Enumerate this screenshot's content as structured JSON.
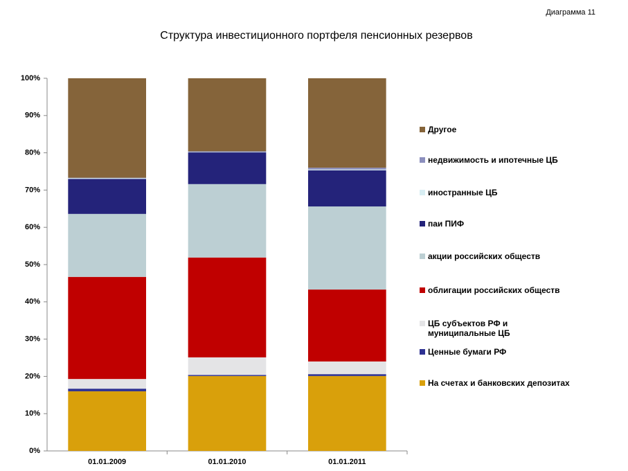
{
  "chart_data": {
    "type": "stacked-bar",
    "annotation": "Диаграмма 11",
    "title": "Структура инвестиционного портфеля пенсионных резервов",
    "categories": [
      "01.01.2009",
      "01.01.2010",
      "01.01.2011"
    ],
    "series": [
      {
        "name": "На счетах и банковских депозитах",
        "color": "#d9a00b",
        "values": [
          16.0,
          20.1,
          20.1
        ]
      },
      {
        "name": "Ценные бумаги РФ",
        "color": "#2e3192",
        "values": [
          0.7,
          0.3,
          0.5
        ]
      },
      {
        "name": "ЦБ субъектов РФ и муниципальные ЦБ",
        "color": "#e4e4e6",
        "values": [
          2.6,
          4.7,
          3.4
        ]
      },
      {
        "name": "облигации российских обществ",
        "color": "#c00000",
        "values": [
          27.4,
          26.8,
          19.3
        ]
      },
      {
        "name": "акции российских обществ",
        "color": "#bccfd3",
        "values": [
          16.9,
          19.7,
          22.3
        ]
      },
      {
        "name": "паи ПИФ",
        "color": "#24237a",
        "values": [
          9.4,
          8.5,
          9.7
        ]
      },
      {
        "name": "иностранные ЦБ",
        "color": "#d8eef3",
        "values": [
          0.2,
          0.1,
          0.2
        ]
      },
      {
        "name": "недвижимость и ипотечные ЦБ",
        "color": "#8c8fbd",
        "values": [
          0.1,
          0.2,
          0.5
        ]
      },
      {
        "name": "Другое",
        "color": "#85643a",
        "values": [
          26.7,
          19.6,
          24.0
        ]
      }
    ],
    "ylim": [
      0,
      100
    ],
    "yticks": [
      {
        "value": 0,
        "label": "0%"
      },
      {
        "value": 10,
        "label": "10%"
      },
      {
        "value": 20,
        "label": "20%"
      },
      {
        "value": 30,
        "label": "30%"
      },
      {
        "value": 40,
        "label": "40%"
      },
      {
        "value": 50,
        "label": "50%"
      },
      {
        "value": 60,
        "label": "60%"
      },
      {
        "value": 70,
        "label": "70%"
      },
      {
        "value": 80,
        "label": "80%"
      },
      {
        "value": 90,
        "label": "90%"
      },
      {
        "value": 100,
        "label": "100%"
      }
    ],
    "legend": "right",
    "grid": false
  }
}
